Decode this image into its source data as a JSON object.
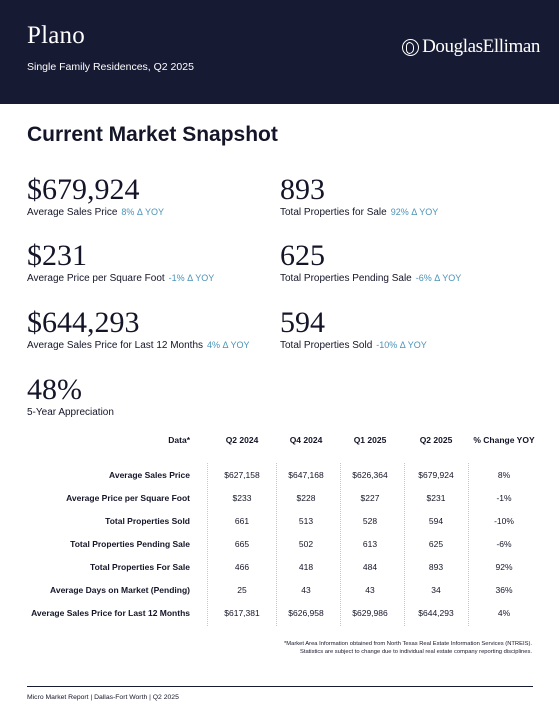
{
  "header": {
    "city": "Plano",
    "subtitle": "Single Family Residences, Q2 2025",
    "brand": "DouglasElliman",
    "background_color": "#171a33"
  },
  "snapshot": {
    "title": "Current Market Snapshot",
    "delta_color": "#4a93b8",
    "stats": [
      {
        "value": "$679,924",
        "label": "Average Sales Price",
        "delta": "8% Δ YOY"
      },
      {
        "value": "893",
        "label": "Total Properties for Sale",
        "delta": "92% Δ YOY"
      },
      {
        "value": "$231",
        "label": "Average Price per Square Foot",
        "delta": "-1% Δ YOY"
      },
      {
        "value": "625",
        "label": "Total Properties Pending Sale",
        "delta": "-6% Δ YOY"
      },
      {
        "value": "$644,293",
        "label": "Average Sales Price for Last 12 Months",
        "delta": "4% Δ YOY"
      },
      {
        "value": "594",
        "label": "Total Properties Sold",
        "delta": "-10% Δ YOY"
      },
      {
        "value": "48%",
        "label": "5-Year Appreciation",
        "delta": ""
      }
    ]
  },
  "table": {
    "columns": [
      "Data*",
      "Q2 2024",
      "Q4 2024",
      "Q1 2025",
      "Q2 2025",
      "% Change YOY"
    ],
    "rows": [
      {
        "label": "Average Sales Price",
        "cells": [
          "$627,158",
          "$647,168",
          "$626,364",
          "$679,924",
          "8%"
        ]
      },
      {
        "label": "Average Price per Square Foot",
        "cells": [
          "$233",
          "$228",
          "$227",
          "$231",
          "-1%"
        ]
      },
      {
        "label": "Total Properties Sold",
        "cells": [
          "661",
          "513",
          "528",
          "594",
          "-10%"
        ]
      },
      {
        "label": "Total Properties Pending Sale",
        "cells": [
          "665",
          "502",
          "613",
          "625",
          "-6%"
        ]
      },
      {
        "label": "Total Properties For Sale",
        "cells": [
          "466",
          "418",
          "484",
          "893",
          "92%"
        ]
      },
      {
        "label": "Average Days on Market (Pending)",
        "cells": [
          "25",
          "43",
          "43",
          "34",
          "36%"
        ]
      },
      {
        "label": "Average Sales Price for Last 12 Months",
        "cells": [
          "$617,381",
          "$626,958",
          "$629,986",
          "$644,293",
          "4%"
        ]
      }
    ]
  },
  "footnote": {
    "line1": "*Market Area Information obtained from North Texas Real Estate Information Services (NTREIS).",
    "line2": "Statistics are subject to change due to individual real estate company reporting disciplines."
  },
  "footer": {
    "text": "Micro Market Report | Dallas-Fort Worth | Q2 2025"
  }
}
